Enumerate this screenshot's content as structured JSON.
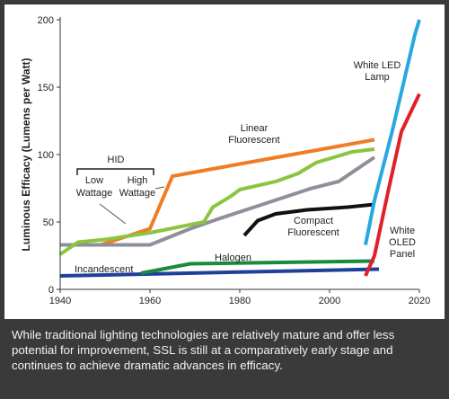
{
  "chart_data": {
    "type": "line",
    "ylabel": "Luminous Efficacy (Lumens per Watt)",
    "xlabel": "",
    "xlim": [
      1940,
      2020
    ],
    "ylim": [
      0,
      200
    ],
    "xticks": [
      1940,
      1960,
      1980,
      2000,
      2020
    ],
    "yticks": [
      0,
      50,
      100,
      150,
      200
    ],
    "grid": false,
    "annotations": {
      "hid_group": "HID",
      "hid_low": [
        "Low",
        "Wattage"
      ],
      "hid_high": [
        "High",
        "Wattage"
      ]
    },
    "series": [
      {
        "name": "Incandescent",
        "label_lines": [
          "Incandescent"
        ],
        "color": "#1f3f9a",
        "x": [
          1940,
          2011
        ],
        "y": [
          10,
          15
        ]
      },
      {
        "name": "Halogen",
        "label_lines": [
          "Halogen"
        ],
        "color": "#1a8a3c",
        "x": [
          1958,
          1969,
          2010
        ],
        "y": [
          12,
          19,
          21
        ]
      },
      {
        "name": "High Wattage",
        "label_lines": [],
        "color": "#f07d25",
        "x": [
          1949,
          1960,
          1965,
          2010
        ],
        "y": [
          33,
          45,
          84,
          111
        ]
      },
      {
        "name": "Low Wattage",
        "label_lines": [],
        "color": "#8f8f9a",
        "x": [
          1940,
          1960,
          1969,
          1975,
          1996,
          2002,
          2010
        ],
        "y": [
          33,
          33,
          45,
          52,
          75,
          80,
          98
        ]
      },
      {
        "name": "Linear Fluorescent",
        "label_lines": [
          "Linear",
          "Fluorescent"
        ],
        "color": "#8bc53f",
        "x": [
          1940,
          1944,
          1950,
          1960,
          1972,
          1974,
          1978,
          1980,
          1988,
          1993,
          1997,
          2002,
          2005,
          2010
        ],
        "y": [
          26,
          35,
          37,
          42,
          50,
          61,
          69,
          74,
          80,
          86,
          94,
          99,
          102,
          104
        ]
      },
      {
        "name": "Compact Fluorescent",
        "label_lines": [
          "Compact",
          "Fluorescent"
        ],
        "color": "#111111",
        "x": [
          1981,
          1984,
          1988,
          1995,
          2004,
          2010
        ],
        "y": [
          40,
          51,
          56,
          59,
          61,
          63
        ]
      },
      {
        "name": "White LED Lamp",
        "label_lines": [
          "White LED",
          "Lamp"
        ],
        "color": "#29a8df",
        "x": [
          2008,
          2010,
          2014,
          2019,
          2020
        ],
        "y": [
          33,
          66,
          118,
          189,
          200
        ]
      },
      {
        "name": "White OLED Panel",
        "label_lines": [
          "White",
          "OLED",
          "Panel"
        ],
        "color": "#e0202a",
        "x": [
          2008,
          2010,
          2013,
          2016,
          2020
        ],
        "y": [
          10,
          25,
          72,
          117,
          145
        ]
      }
    ]
  },
  "caption": "While traditional lighting technologies are relatively mature and offer less potential for improvement, SSL is still at a comparatively early stage and continues to achieve dramatic advances in efficacy."
}
